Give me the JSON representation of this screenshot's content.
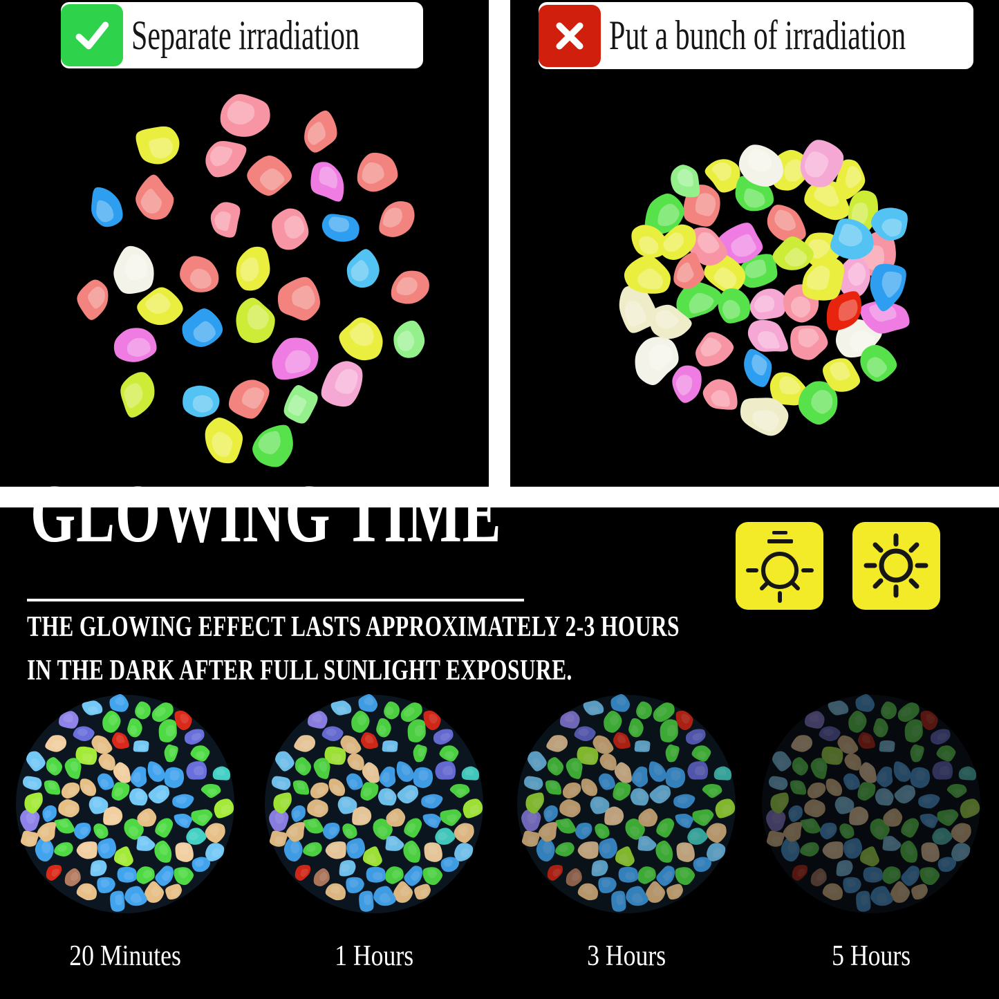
{
  "page": {
    "background": "#000000",
    "divider_color": "#ffffff"
  },
  "comparison": {
    "good": {
      "label": "Separate irradiation",
      "icon": "check",
      "icon_color": "#2fd24b",
      "chip_bg": "#ffffff",
      "text_color": "#161616"
    },
    "bad": {
      "label": "Put a bunch of irradiation",
      "icon": "cross",
      "icon_color": "#d11f0e",
      "chip_bg": "#ffffff",
      "text_color": "#161616"
    }
  },
  "glowing_time": {
    "title": "GLOWING TIME",
    "description_line1": "THE GLOWING EFFECT LASTS APPROXIMATELY 2-3 HOURS",
    "description_line2": "IN THE DARK AFTER FULL SUNLIGHT EXPOSURE.",
    "text_color": "#ffffff",
    "icon_bg": "#f3eb28",
    "icon_glyph_color": "#161616",
    "icons": [
      {
        "name": "lamp-icon"
      },
      {
        "name": "sun-icon"
      }
    ],
    "stages": [
      {
        "label": "20 Minutes",
        "brightness": 1.0
      },
      {
        "label": "1 Hours",
        "brightness": 0.95
      },
      {
        "label": "3 Hours",
        "brightness": 0.78
      },
      {
        "label": "5 Hours",
        "brightness": 0.45
      }
    ]
  },
  "pebbles": {
    "day_palette": [
      {
        "color": "#f2837e",
        "weight": 5
      },
      {
        "color": "#f795a4",
        "weight": 3
      },
      {
        "color": "#ee7ce2",
        "weight": 3
      },
      {
        "color": "#f5a8d4",
        "weight": 2
      },
      {
        "color": "#e9ee3f",
        "weight": 4
      },
      {
        "color": "#cdec37",
        "weight": 2
      },
      {
        "color": "#57e14a",
        "weight": 3
      },
      {
        "color": "#93f08b",
        "weight": 2
      },
      {
        "color": "#2e9ff0",
        "weight": 3
      },
      {
        "color": "#52c3f2",
        "weight": 2
      },
      {
        "color": "#f3f3e9",
        "weight": 1
      }
    ],
    "bunch_extra_palette": [
      {
        "color": "#e8230e",
        "weight": 1
      },
      {
        "color": "#efecc9",
        "weight": 2
      }
    ],
    "glow_palette": [
      {
        "color": "#47a3ea",
        "weight": 13
      },
      {
        "color": "#77c7f3",
        "weight": 6
      },
      {
        "color": "#6a6fd6",
        "weight": 5
      },
      {
        "color": "#8f83e6",
        "weight": 2
      },
      {
        "color": "#54d84a",
        "weight": 9
      },
      {
        "color": "#a6e93f",
        "weight": 4
      },
      {
        "color": "#e5c08b",
        "weight": 8
      },
      {
        "color": "#f0cfa2",
        "weight": 3
      },
      {
        "color": "#49cfc3",
        "weight": 1
      },
      {
        "color": "#d32b1b",
        "weight": 1
      },
      {
        "color": "#b07b61",
        "weight": 1
      }
    ]
  }
}
